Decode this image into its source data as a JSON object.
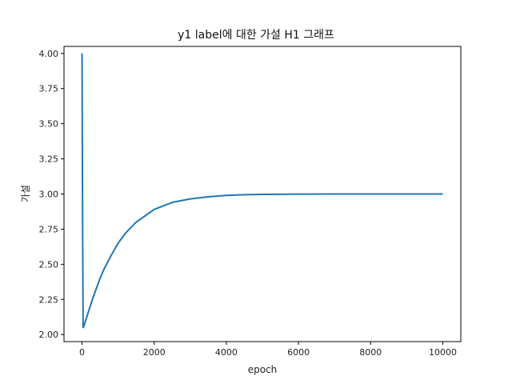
{
  "chart_data": {
    "type": "line",
    "title": "y1 label에 대한 가설 H1 그래프",
    "xlabel": "epoch",
    "ylabel": "가설",
    "xlim": [
      -500,
      10500
    ],
    "ylim": [
      1.95,
      4.05
    ],
    "xticks": [
      0,
      2000,
      4000,
      6000,
      8000,
      10000
    ],
    "yticks": [
      "2.00",
      "2.25",
      "2.50",
      "2.75",
      "3.00",
      "3.25",
      "3.50",
      "3.75",
      "4.00"
    ],
    "grid": false,
    "line_color": "#1f77b4",
    "series": [
      {
        "x": [
          0,
          15,
          30,
          50,
          100,
          200,
          300,
          400,
          500,
          600,
          800,
          1000,
          1200,
          1500,
          2000,
          2500,
          3000,
          3500,
          4000,
          4500,
          5000,
          6000,
          7000,
          8000,
          9000,
          10000
        ],
        "values": [
          4.0,
          2.85,
          2.05,
          2.06,
          2.1,
          2.18,
          2.26,
          2.33,
          2.4,
          2.46,
          2.56,
          2.65,
          2.72,
          2.8,
          2.89,
          2.94,
          2.965,
          2.98,
          2.99,
          2.995,
          2.997,
          2.999,
          3.0,
          3.0,
          3.0,
          3.0
        ]
      }
    ]
  }
}
